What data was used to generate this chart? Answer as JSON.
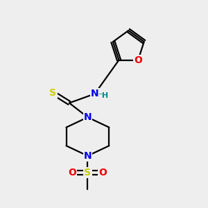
{
  "bg_color": "#eeeeee",
  "atom_colors": {
    "C": "#000000",
    "N": "#0000ee",
    "O": "#ee0000",
    "S": "#cccc00",
    "H": "#008888"
  },
  "bond_color": "#000000",
  "bond_width": 1.6,
  "font_size_atom": 10,
  "font_size_small": 8,
  "figsize": [
    3.0,
    3.0
  ],
  "dpi": 100
}
